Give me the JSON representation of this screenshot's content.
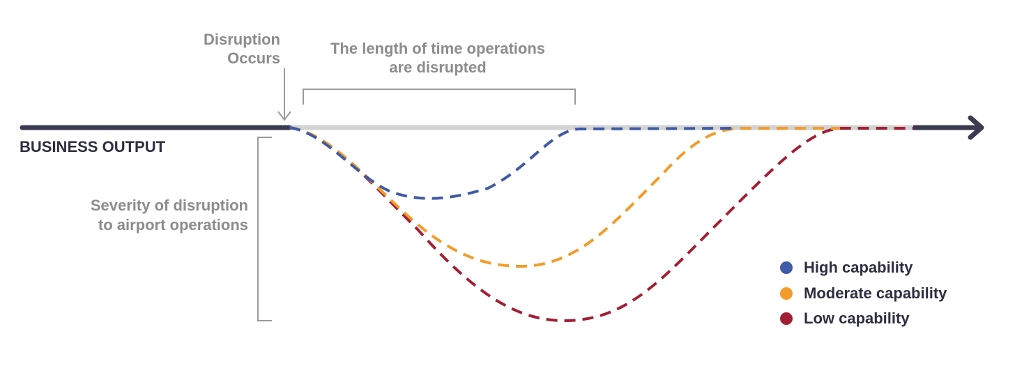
{
  "axis_label": "BUSINESS OUTPUT",
  "disruption_label": [
    "Disruption",
    "Occurs"
  ],
  "duration_label": [
    "The length of time operations",
    "are disrupted"
  ],
  "severity_label": [
    "Severity of disruption",
    "to airport operations"
  ],
  "legend": [
    {
      "label": "High capability",
      "color": "#3f5aa6"
    },
    {
      "label": "Moderate capability",
      "color": "#f39c2a"
    },
    {
      "label": "Low capability",
      "color": "#a31f34"
    }
  ]
}
